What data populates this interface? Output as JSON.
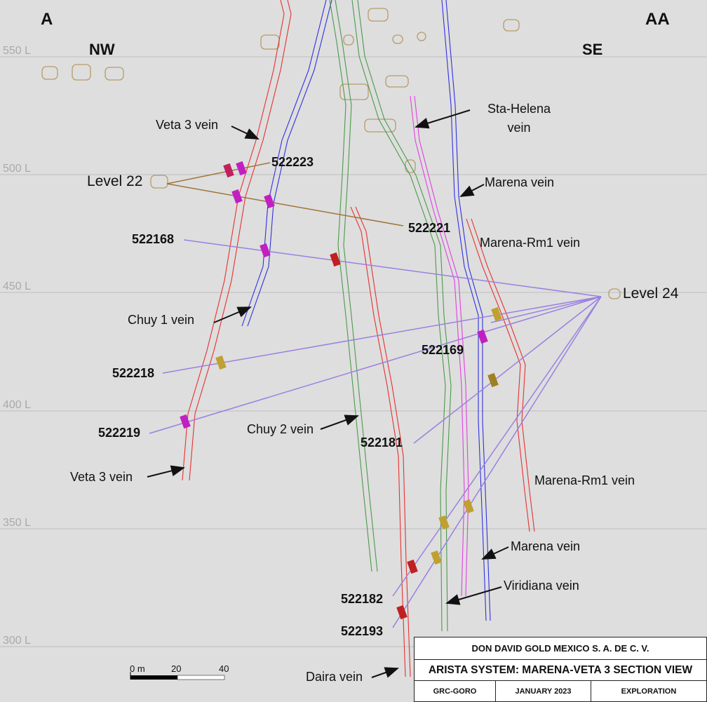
{
  "section": {
    "corners": {
      "left": "A",
      "right": "AA",
      "left_direction": "NW",
      "right_direction": "SE"
    },
    "elevations": [
      "550 L",
      "500 L",
      "450 L",
      "400 L",
      "350 L",
      "300 L"
    ],
    "levels": [
      "Level 22",
      "Level 24"
    ],
    "drill_holes": [
      "522223",
      "522221",
      "522168",
      "522169",
      "522218",
      "522219",
      "522181",
      "522182",
      "522193"
    ],
    "veins": [
      "Veta 3 vein",
      "Sta-Helena vein",
      "Marena vein",
      "Marena-Rm1 vein",
      "Chuy 1 vein",
      "Chuy 2 vein",
      "Veta 3 vein",
      "Marena-Rm1 vein",
      "Marena vein",
      "Viridiana vein",
      "Daira vein"
    ],
    "scale": {
      "start": "0 m",
      "middle": "20",
      "end": "40"
    }
  },
  "title_block": {
    "company": "DON DAVID GOLD MEXICO S. A. DE C. V.",
    "title": "ARISTA SYSTEM: MARENA-VETA 3 SECTION VIEW",
    "code": "GRC-GORO",
    "date": "JANUARY 2023",
    "department": "EXPLORATION"
  }
}
